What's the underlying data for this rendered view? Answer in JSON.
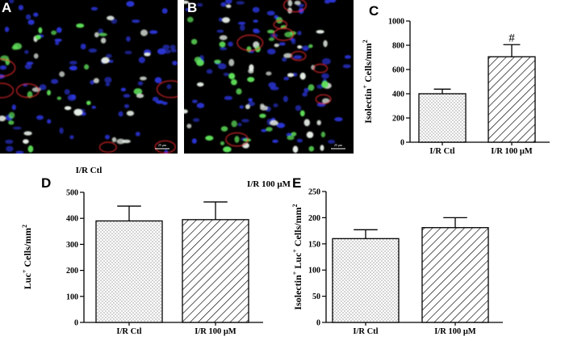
{
  "panels": {
    "A": "A",
    "B": "B",
    "C": "C",
    "D": "D",
    "E": "E"
  },
  "images": {
    "left_caption": "I/R Ctl",
    "right_caption": "I/R 100 μM",
    "scalebar_left": "25 μm",
    "scalebar_right": "25 μm"
  },
  "colors": {
    "nuclei": "#2b35d8",
    "isolectin": "#d8262c",
    "luciferase": "#5fe05a"
  },
  "chart_data": [
    {
      "id": "C",
      "type": "bar",
      "categories": [
        "I/R Ctl",
        "I/R 100 μM"
      ],
      "values": [
        400,
        705
      ],
      "errors": [
        38,
        100
      ],
      "patterns": [
        "dots",
        "diagonal"
      ],
      "annotations": [
        "",
        "#"
      ],
      "ylabel_pre": "Isolectin",
      "ylabel_sup": "+",
      "ylabel_post": " Cells/mm",
      "ylabel_sup2": "2",
      "ylim": [
        0,
        1000
      ],
      "yticks": [
        0,
        200,
        400,
        600,
        800,
        1000
      ],
      "ytick_labels": [
        "0",
        "200",
        "400",
        "600",
        "800",
        "1000"
      ]
    },
    {
      "id": "D",
      "type": "bar",
      "categories": [
        "I/R Ctl",
        "I/R 100 μM"
      ],
      "values": [
        390,
        395
      ],
      "errors": [
        57,
        68
      ],
      "patterns": [
        "dots",
        "diagonal"
      ],
      "annotations": [
        "",
        ""
      ],
      "ylabel_pre": "Luc",
      "ylabel_sup": "+",
      "ylabel_post": " Cells/mm",
      "ylabel_sup2": "2",
      "ylim": [
        0,
        500
      ],
      "yticks": [
        0,
        100,
        200,
        300,
        400,
        500
      ],
      "ytick_labels": [
        "0",
        "100",
        "200",
        "300",
        "400",
        "500"
      ]
    },
    {
      "id": "E",
      "type": "bar",
      "categories": [
        "I/R Ctl",
        "I/R 100 μM"
      ],
      "values": [
        160,
        181
      ],
      "errors": [
        17,
        19
      ],
      "patterns": [
        "dots",
        "diagonal"
      ],
      "annotations": [
        "",
        ""
      ],
      "ylabel_pre": "Isolectin",
      "ylabel_sup": "+",
      "ylabel_post": " Luc",
      "ylabel_sup3": "+",
      "ylabel_post2": " Cells/mm",
      "ylabel_sup2": "2",
      "ylim": [
        0,
        250
      ],
      "yticks": [
        0,
        50,
        100,
        150,
        200,
        250
      ],
      "ytick_labels": [
        "0",
        "50",
        "100",
        "150",
        "200",
        "250"
      ]
    }
  ]
}
